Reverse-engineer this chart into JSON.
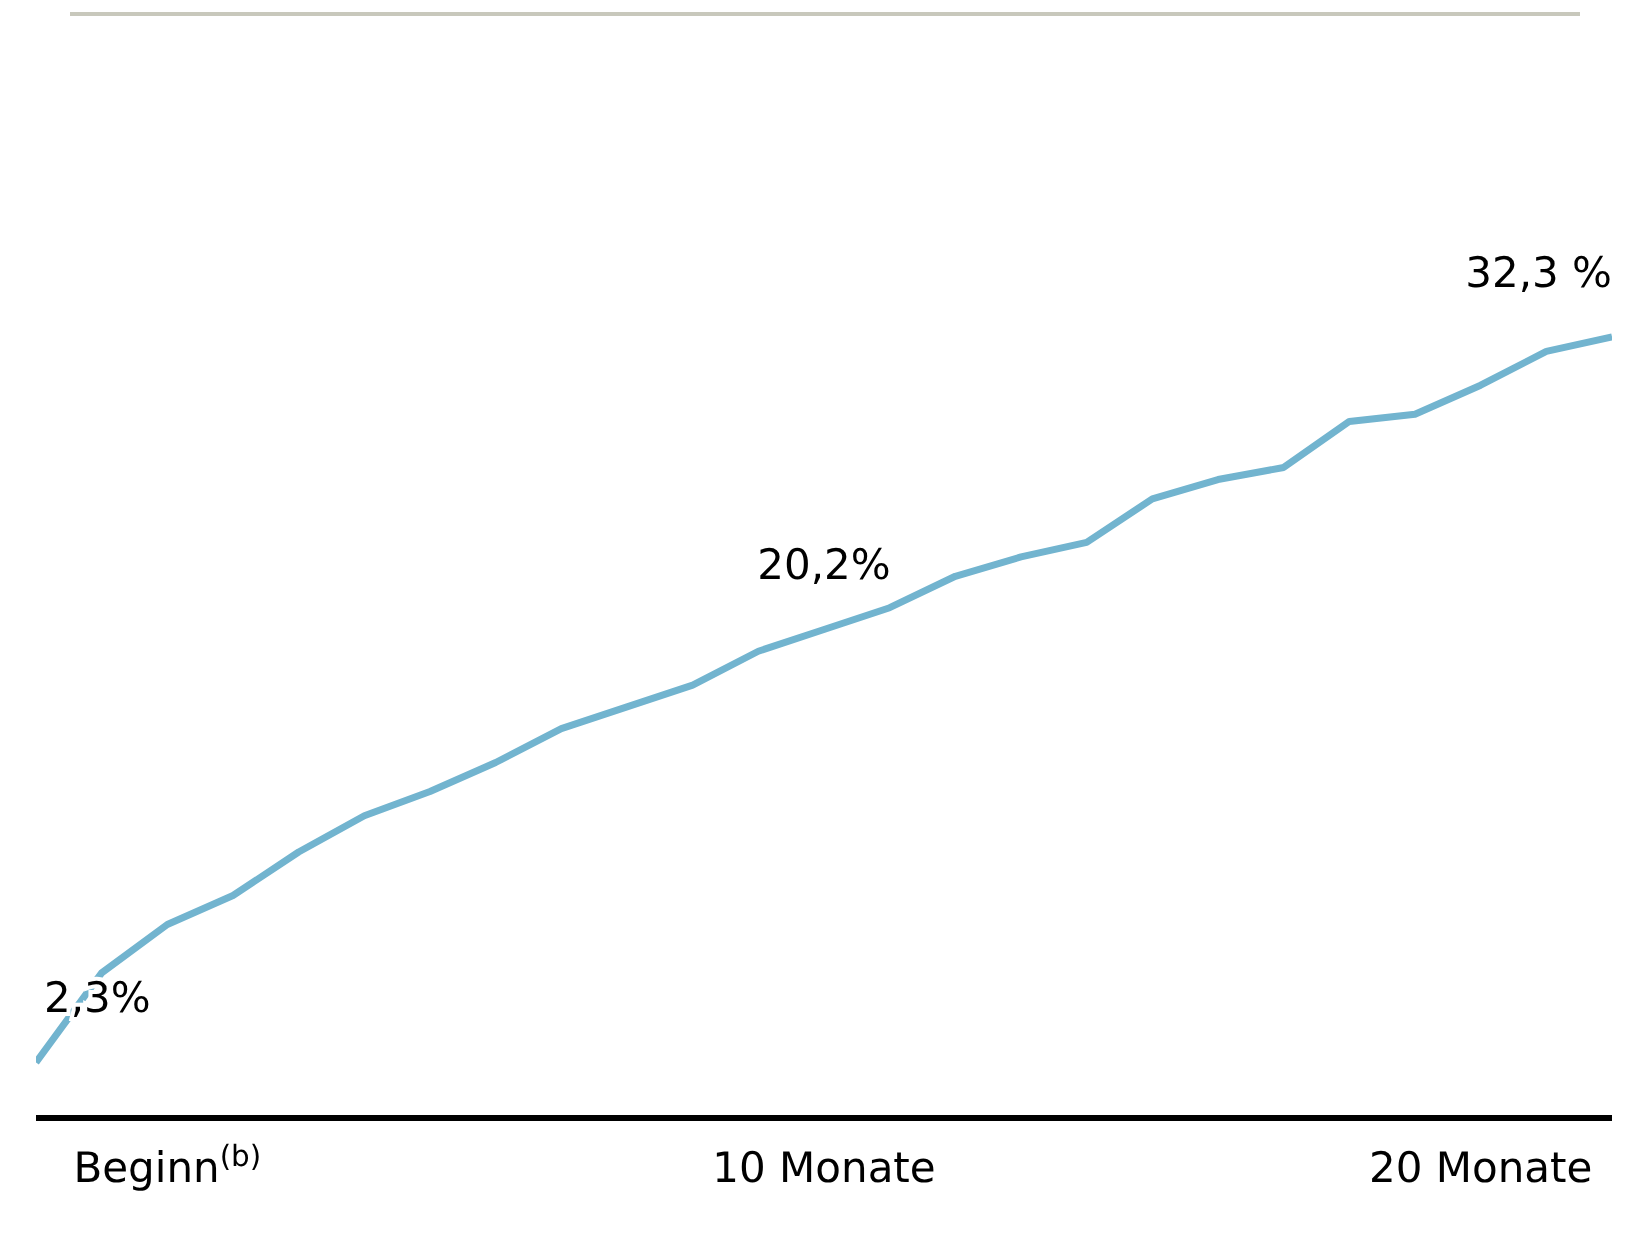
{
  "chart_data": {
    "type": "line",
    "categories": [
      null,
      null,
      "Beginn$^{(b)}$",
      null,
      null,
      null,
      null,
      null,
      null,
      null,
      null,
      null,
      "10 Monate",
      null,
      null,
      null,
      null,
      null,
      null,
      null,
      null,
      null,
      "20 Monate",
      null,
      null
    ],
    "series": [
      {
        "color": "#72b4cf",
        "values": [
          2.3,
          6.0,
          8.0,
          9.2,
          11.0,
          12.5,
          13.5,
          14.7,
          16.1,
          17.0,
          17.9,
          19.3,
          20.2,
          21.1,
          22.4,
          23.2,
          23.8,
          25.6,
          26.4,
          26.9,
          28.8,
          29.1,
          30.3,
          31.7,
          32.3
        ],
        "value_labels": [
          "2,3%",
          null,
          null,
          null,
          null,
          null,
          null,
          null,
          null,
          null,
          null,
          null,
          "20,2%",
          null,
          null,
          null,
          null,
          null,
          null,
          null,
          null,
          null,
          null,
          null,
          "32,3 %"
        ]
      }
    ],
    "grid": false,
    "legend": false,
    "marker": "none",
    "line_style": "solid"
  }
}
